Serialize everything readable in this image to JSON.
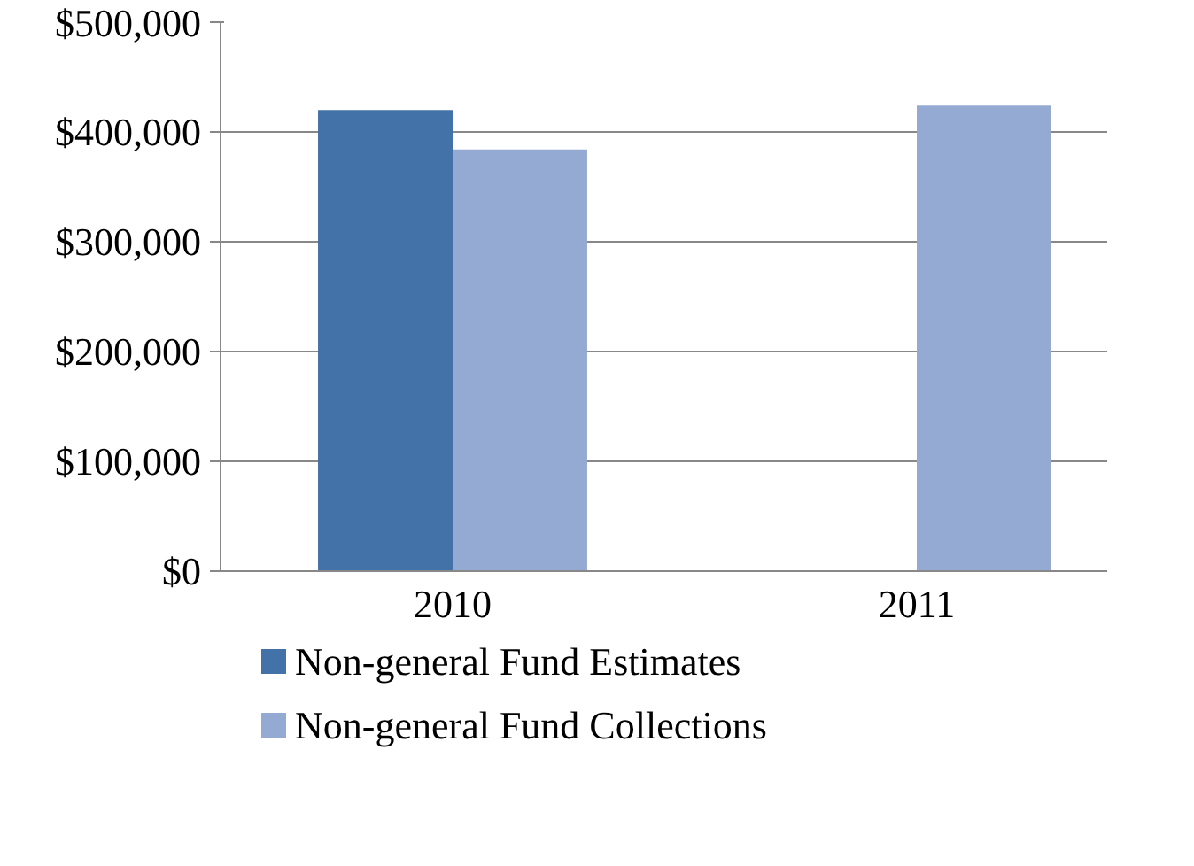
{
  "chart_data": {
    "type": "bar",
    "categories": [
      "2010",
      "2011"
    ],
    "series": [
      {
        "name": "Non-general Fund Estimates",
        "color": "#4372a8",
        "values": [
          420000,
          null
        ]
      },
      {
        "name": "Non-general Fund Collections",
        "color": "#94aad3",
        "values": [
          384000,
          424000
        ]
      }
    ],
    "ylim": [
      0,
      500000
    ],
    "yticks": [
      {
        "value": 0,
        "label": "$0"
      },
      {
        "value": 100000,
        "label": "$100,000"
      },
      {
        "value": 200000,
        "label": "$200,000"
      },
      {
        "value": 300000,
        "label": "$300,000"
      },
      {
        "value": 400000,
        "label": "$400,000"
      },
      {
        "value": 500000,
        "label": "$500,000"
      }
    ],
    "grid": "y",
    "legend": "bottom"
  }
}
